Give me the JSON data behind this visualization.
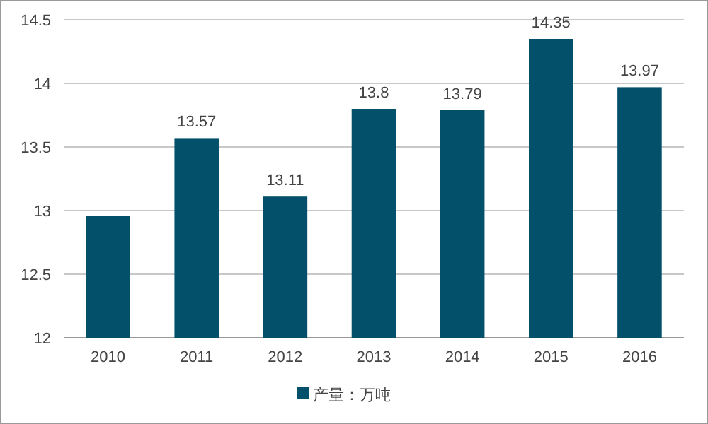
{
  "chart_data": {
    "type": "bar",
    "categories": [
      "2010",
      "2011",
      "2012",
      "2013",
      "2014",
      "2015",
      "2016"
    ],
    "series": [
      {
        "name": "产量：万吨",
        "color": "#03506b",
        "values": [
          12.96,
          13.57,
          13.11,
          13.8,
          13.79,
          14.35,
          13.97
        ],
        "value_labels": [
          null,
          "13.57",
          "13.11",
          "13.8",
          "13.79",
          "14.35",
          "13.97"
        ]
      }
    ],
    "ylim": [
      12,
      14.5
    ],
    "yticks": [
      12,
      12.5,
      13,
      13.5,
      14,
      14.5
    ],
    "grid": "y",
    "legend": "bottom"
  }
}
